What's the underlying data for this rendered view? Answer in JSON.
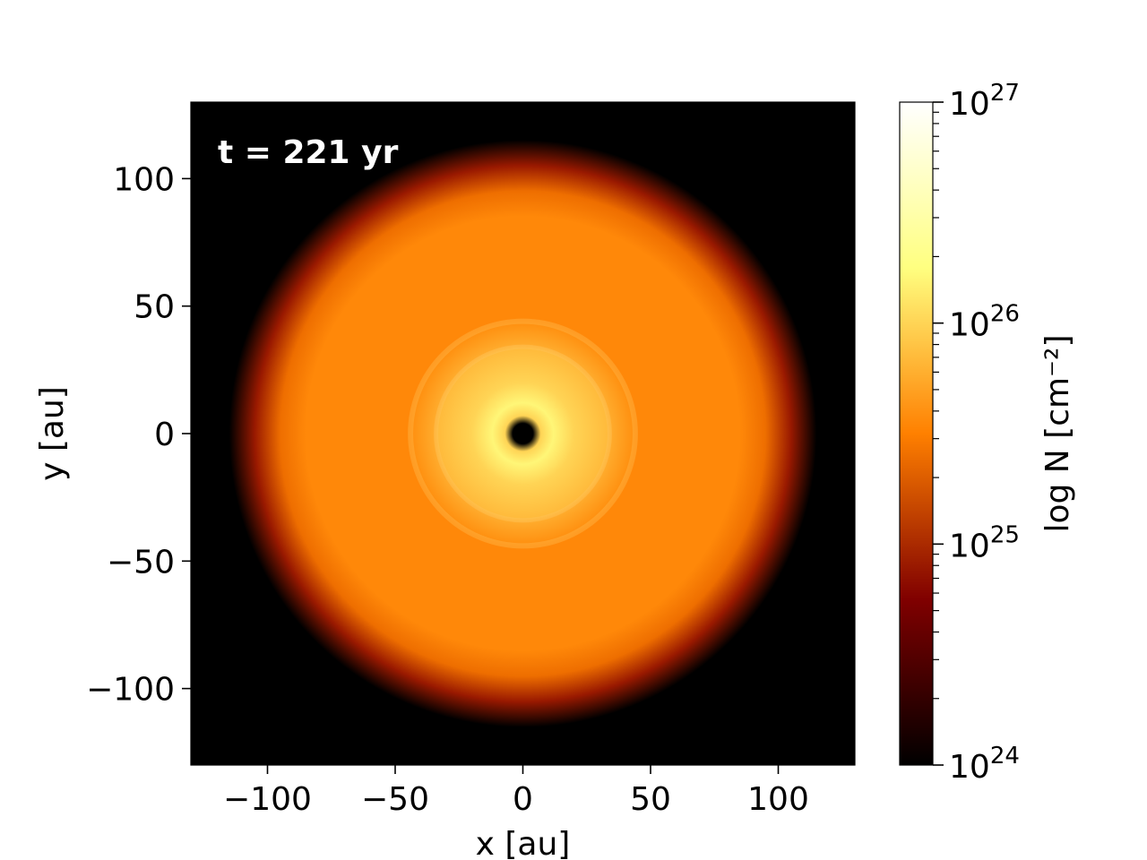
{
  "chart_data": {
    "type": "heatmap",
    "title": "",
    "annotation": "t = 221 yr",
    "xlabel": "x [au]",
    "ylabel": "y [au]",
    "xlim": [
      -130,
      130
    ],
    "ylim": [
      -130,
      130
    ],
    "x_ticks": [
      -100,
      -50,
      0,
      50,
      100
    ],
    "x_tick_labels": [
      "−100",
      "−50",
      "0",
      "50",
      "100"
    ],
    "y_ticks": [
      -100,
      -50,
      0,
      50,
      100
    ],
    "y_tick_labels": [
      "−100",
      "−50",
      "0",
      "50",
      "100"
    ],
    "colormap": "afmhot",
    "colorbar": {
      "label": "log N [cm⁻²]",
      "scale": "log",
      "range": [
        1e+24,
        1e+27
      ],
      "major_ticks": [
        1e+24,
        1e+25,
        1e+26,
        1e+27
      ],
      "major_tick_labels": [
        {
          "base": "10",
          "exp": "24"
        },
        {
          "base": "10",
          "exp": "25"
        },
        {
          "base": "10",
          "exp": "26"
        },
        {
          "base": "10",
          "exp": "27"
        }
      ]
    },
    "radial_profile": {
      "center": [
        0,
        0
      ],
      "radius_au": [
        0,
        4,
        7,
        12,
        20,
        33,
        35,
        43,
        45,
        85,
        95,
        105,
        115
      ],
      "log_N": [
        24.0,
        24.0,
        26.0,
        26.2,
        26.0,
        25.85,
        25.75,
        25.6,
        25.55,
        25.55,
        25.4,
        24.9,
        24.0
      ]
    }
  }
}
